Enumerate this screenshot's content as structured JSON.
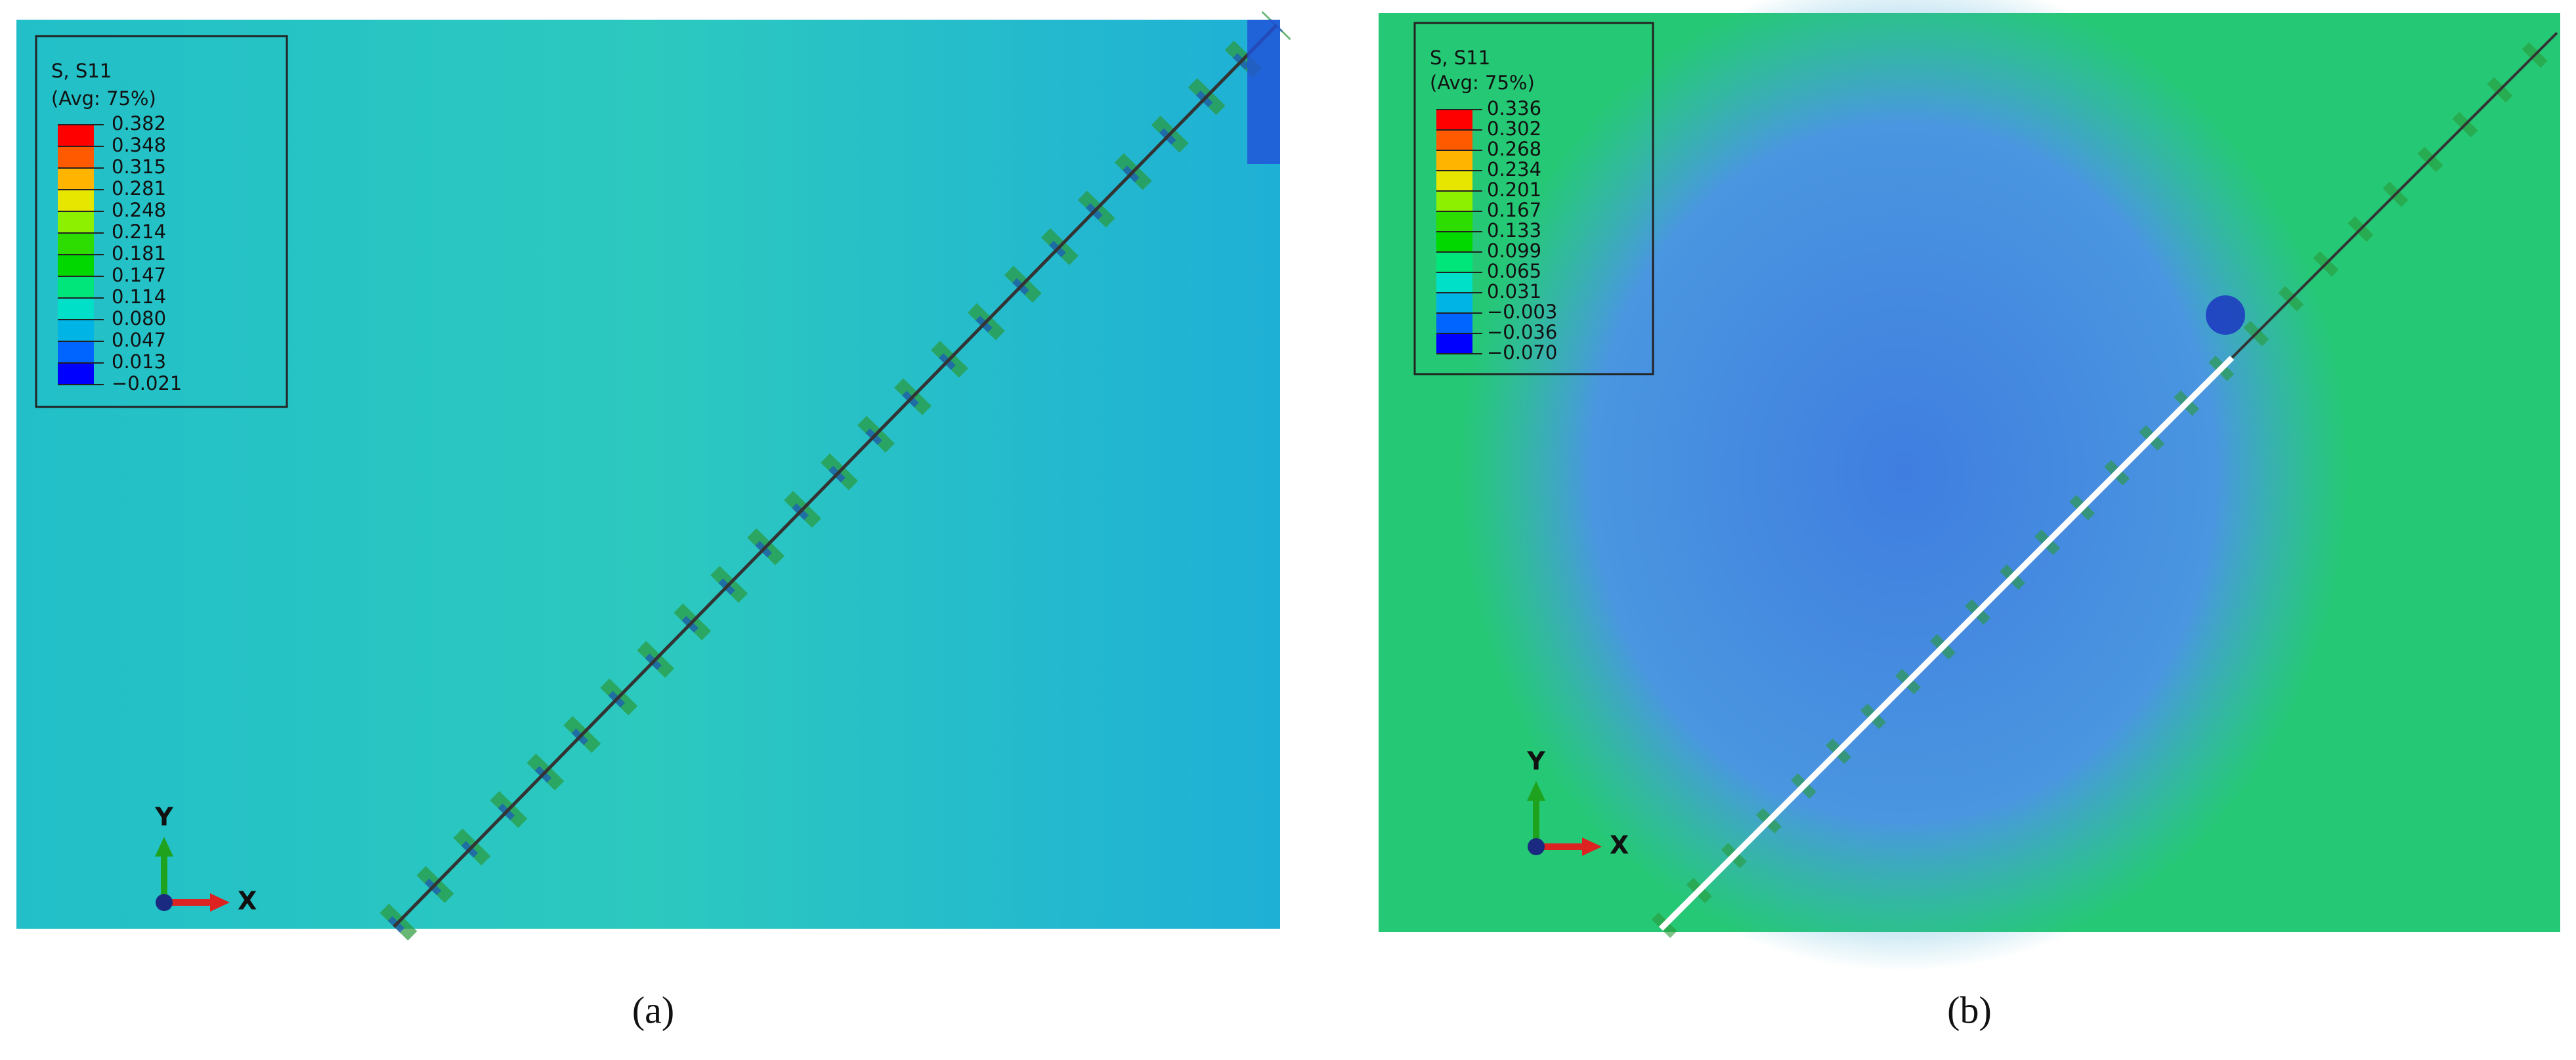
{
  "panels": [
    {
      "legend": {
        "title": "S, S11",
        "subtitle": "(Avg: 75%)",
        "values": [
          "0.382",
          "0.348",
          "0.315",
          "0.281",
          "0.248",
          "0.214",
          "0.181",
          "0.147",
          "0.114",
          "0.080",
          "0.047",
          "0.013",
          "−0.021"
        ]
      },
      "axes": {
        "y": "Y",
        "x": "X"
      },
      "caption": "(a)"
    },
    {
      "legend": {
        "title": "S, S11",
        "subtitle": "(Avg: 75%)",
        "values": [
          "0.336",
          "0.302",
          "0.268",
          "0.234",
          "0.201",
          "0.167",
          "0.133",
          "0.099",
          "0.065",
          "0.031",
          "−0.003",
          "−0.036",
          "−0.070"
        ]
      },
      "axes": {
        "y": "Y",
        "x": "X"
      },
      "caption": "(b)"
    }
  ]
}
